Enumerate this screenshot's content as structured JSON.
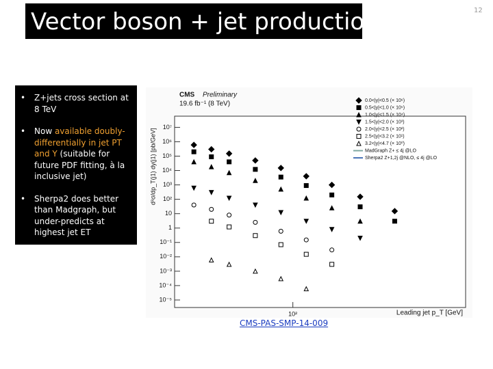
{
  "slide": {
    "title": "Vector boson + jet production",
    "page_number": "12",
    "bullets": [
      [
        {
          "text": "Z+jets cross section at 8 TeV",
          "color": "#ffffff"
        }
      ],
      [
        {
          "text": "Now ",
          "color": "#ffffff"
        },
        {
          "text": "available doubly-differentially in jet PT and Y",
          "color": "#f0a030"
        },
        {
          "text": " (suitable for future PDF fitting, à la inclusive jet)",
          "color": "#ffffff"
        }
      ],
      [
        {
          "text": "Sherpa2 does better than Madgraph, but under-predicts at highest jet ET",
          "color": "#ffffff"
        }
      ]
    ],
    "link": "CMS-PAS-SMP-14-009"
  },
  "chart_data": {
    "type": "scatter",
    "experiment": "CMS",
    "status": "Preliminary",
    "luminosity": "19.6 fb⁻¹ (8 TeV)",
    "y_label": "d²σ/dp_T(j1) dy(j1) [pb/GeV]",
    "x_label": "Leading jet p_T [GeV]",
    "log_x": true,
    "log_y": true,
    "xlim": [
      20,
      1050
    ],
    "xticks": [
      {
        "value": 100,
        "label": "10²"
      }
    ],
    "ylim": [
      3e-06,
      60000000.0
    ],
    "yticks": [
      {
        "value": 10000000,
        "label": "10⁷"
      },
      {
        "value": 1000000,
        "label": "10⁶"
      },
      {
        "value": 100000,
        "label": "10⁵"
      },
      {
        "value": 10000,
        "label": "10⁴"
      },
      {
        "value": 1000,
        "label": "10³"
      },
      {
        "value": 100,
        "label": "10²"
      },
      10,
      1,
      {
        "value": 0.1,
        "label": "10⁻¹"
      },
      {
        "value": 0.01,
        "label": "10⁻²"
      },
      {
        "value": 0.001,
        "label": "10⁻³"
      },
      {
        "value": 0.0001,
        "label": "10⁻⁴"
      },
      {
        "value": 1e-05,
        "label": "10⁻⁵"
      }
    ],
    "x": [
      26,
      33,
      42,
      60,
      85,
      120,
      170,
      250,
      400
    ],
    "series": [
      {
        "name": "0.0<|y|<0.5 (× 10⁶)",
        "marker": "diamond",
        "color": "#000000",
        "values": [
          600000,
          300000,
          150000,
          50000,
          15000,
          4000,
          1000,
          150,
          15
        ]
      },
      {
        "name": "0.5<|y|<1.0 (× 10⁵)",
        "marker": "square",
        "color": "#000000",
        "values": [
          200000,
          90000,
          40000,
          12000,
          3500,
          900,
          200,
          30,
          3
        ]
      },
      {
        "name": "1.0<|y|<1.5 (× 10⁴)",
        "marker": "triangle",
        "color": "#000000",
        "values": [
          40000,
          18000,
          7000,
          2000,
          500,
          120,
          25,
          3,
          null
        ]
      },
      {
        "name": "1.5<|y|<2.0 (× 10³)",
        "marker": "triangle-down",
        "color": "#000000",
        "values": [
          600,
          300,
          120,
          40,
          12,
          3,
          0.8,
          0.2,
          null
        ]
      },
      {
        "name": "2.0<|y|<2.5 (× 10²)",
        "marker": "circle",
        "color": "#000000",
        "values": [
          40,
          20,
          8,
          2.5,
          0.6,
          0.15,
          0.03,
          null,
          null
        ]
      },
      {
        "name": "2.5<|y|<3.2 (× 10¹)",
        "marker": "square-open",
        "color": "#000000",
        "values": [
          null,
          3,
          1.2,
          0.3,
          0.07,
          0.015,
          0.003,
          null,
          null
        ]
      },
      {
        "name": "3.2<|y|<4.7 (× 10⁰)",
        "marker": "triangle-open",
        "color": "#000000",
        "values": [
          null,
          0.006,
          0.003,
          0.001,
          0.0003,
          6e-05,
          null,
          null,
          null
        ]
      }
    ],
    "legend_lines": [
      {
        "name": "MadGraph Z+ ≤ 4j @LO",
        "color": "#7fa8a0"
      },
      {
        "name": "Sherpa2 Z+1,2j @NLO, ≤ 4j @LO",
        "color": "#4a74b8"
      }
    ]
  }
}
